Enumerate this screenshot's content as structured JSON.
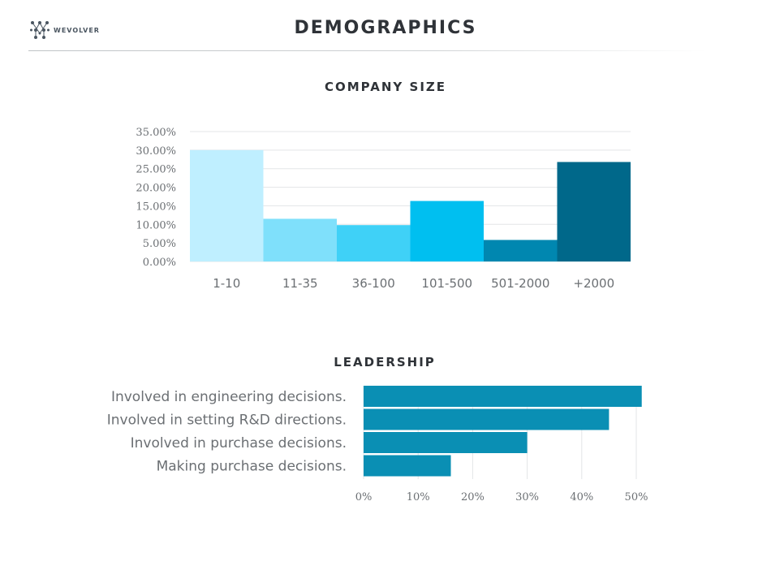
{
  "header": {
    "logo_text": "WEVOLVER",
    "title": "DEMOGRAPHICS"
  },
  "chart_data": [
    {
      "type": "bar",
      "title": "COMPANY SIZE",
      "categories": [
        "1-10",
        "11-35",
        "36-100",
        "101-500",
        "501-2000",
        "+2000"
      ],
      "values": [
        30.0,
        11.5,
        9.8,
        16.3,
        5.8,
        26.8
      ],
      "colors": [
        "#bfefff",
        "#7fe0fb",
        "#3fd1f7",
        "#00bff0",
        "#0087b0",
        "#00688a"
      ],
      "ylim": [
        0,
        35
      ],
      "yticks": [
        "0.00%",
        "5.00%",
        "10.00%",
        "15.00%",
        "20.00%",
        "25.00%",
        "30.00%",
        "35.00%"
      ],
      "xlabel": "",
      "ylabel": "",
      "grid": true
    },
    {
      "type": "bar",
      "orientation": "horizontal",
      "title": "LEADERSHIP",
      "categories": [
        "Involved in engineering decisions.",
        "Involved in setting R&D directions.",
        "Involved in purchase decisions.",
        "Making purchase decisions."
      ],
      "values": [
        51,
        45,
        30,
        16
      ],
      "color": "#0a8fb4",
      "xlim": [
        0,
        50
      ],
      "xticks": [
        "0%",
        "10%",
        "20%",
        "30%",
        "40%",
        "50%"
      ],
      "xlabel": "",
      "ylabel": "",
      "grid": true
    }
  ]
}
